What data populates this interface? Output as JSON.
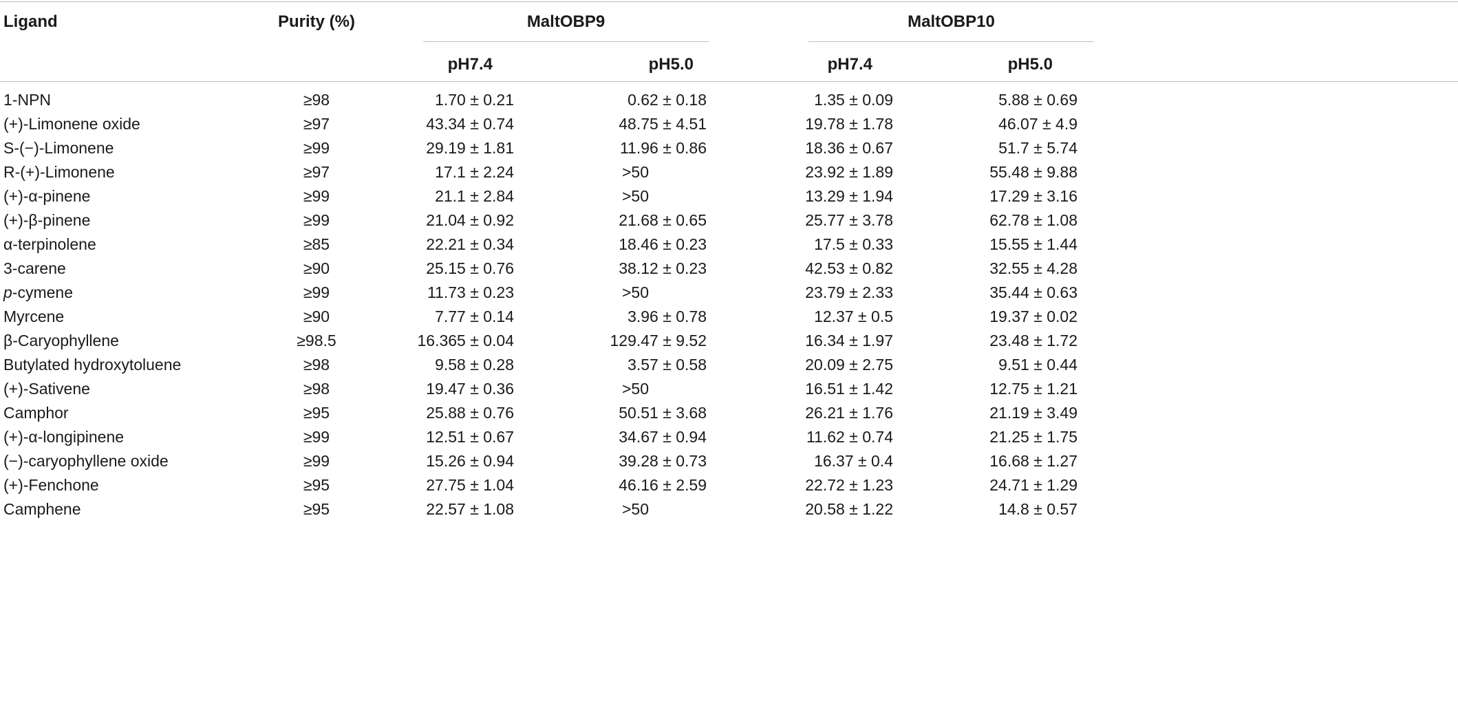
{
  "table": {
    "headers": {
      "ligand": "Ligand",
      "purity": "Purity (%)",
      "group1": "MaltOBP9",
      "group2": "MaltOBP10",
      "sub": [
        "pH7.4",
        "pH5.0",
        "pH7.4",
        "pH5.0"
      ]
    },
    "rows": [
      {
        "ligand": "1-NPN",
        "purity": "≥98",
        "v": [
          "1.70 ± 0.21",
          "0.62 ± 0.18",
          "1.35 ± 0.09",
          "5.88 ± 0.69"
        ]
      },
      {
        "ligand": "(+)-Limonene oxide",
        "purity": "≥97",
        "v": [
          "43.34 ± 0.74",
          "48.75 ± 4.51",
          "19.78 ± 1.78",
          "46.07 ± 4.9"
        ]
      },
      {
        "ligand": "S-(−)-Limonene",
        "purity": "≥99",
        "v": [
          "29.19 ± 1.81",
          "11.96 ± 0.86",
          "18.36 ± 0.67",
          "51.7 ± 5.74"
        ]
      },
      {
        "ligand": "R-(+)-Limonene",
        "purity": "≥97",
        "v": [
          "17.1 ± 2.24",
          ">50",
          "23.92 ± 1.89",
          "55.48 ± 9.88"
        ]
      },
      {
        "ligand": "(+)-α-pinene",
        "purity": "≥99",
        "v": [
          "21.1 ± 2.84",
          ">50",
          "13.29 ± 1.94",
          "17.29 ± 3.16"
        ]
      },
      {
        "ligand": "(+)-β-pinene",
        "purity": "≥99",
        "v": [
          "21.04 ± 0.92",
          "21.68 ± 0.65",
          "25.77 ± 3.78",
          "62.78 ± 1.08"
        ]
      },
      {
        "ligand": "α-terpinolene",
        "purity": "≥85",
        "v": [
          "22.21 ± 0.34",
          "18.46 ± 0.23",
          "17.5 ± 0.33",
          "15.55 ± 1.44"
        ]
      },
      {
        "ligand": "3-carene",
        "purity": "≥90",
        "v": [
          "25.15 ± 0.76",
          "38.12 ± 0.23",
          "42.53 ± 0.82",
          "32.55 ± 4.28"
        ]
      },
      {
        "ligand": "p-cymene",
        "purity": "≥99",
        "v": [
          "11.73 ± 0.23",
          ">50",
          "23.79 ± 2.33",
          "35.44 ± 0.63"
        ]
      },
      {
        "ligand": "Myrcene",
        "purity": "≥90",
        "v": [
          "7.77 ± 0.14",
          "3.96 ± 0.78",
          "12.37 ± 0.5",
          "19.37 ± 0.02"
        ]
      },
      {
        "ligand": "β-Caryophyllene",
        "purity": "≥98.5",
        "v": [
          "16.365 ± 0.04",
          "129.47 ± 9.52",
          "16.34 ± 1.97",
          "23.48 ± 1.72"
        ]
      },
      {
        "ligand": "Butylated hydroxytoluene",
        "purity": "≥98",
        "v": [
          "9.58 ± 0.28",
          "3.57 ± 0.58",
          "20.09 ± 2.75",
          "9.51 ± 0.44"
        ]
      },
      {
        "ligand": "(+)-Sativene",
        "purity": "≥98",
        "v": [
          "19.47 ± 0.36",
          ">50",
          "16.51 ± 1.42",
          "12.75 ± 1.21"
        ]
      },
      {
        "ligand": "Camphor",
        "purity": "≥95",
        "v": [
          "25.88 ± 0.76",
          "50.51 ± 3.68",
          "26.21 ± 1.76",
          "21.19 ± 3.49"
        ]
      },
      {
        "ligand": "(+)-α-longipinene",
        "purity": "≥99",
        "v": [
          "12.51 ± 0.67",
          "34.67 ± 0.94",
          "11.62 ± 0.74",
          "21.25 ± 1.75"
        ]
      },
      {
        "ligand": "(−)-caryophyllene oxide",
        "purity": "≥99",
        "v": [
          "15.26 ± 0.94",
          "39.28 ± 0.73",
          "16.37 ± 0.4",
          "16.68 ± 1.27"
        ]
      },
      {
        "ligand": "(+)-Fenchone",
        "purity": "≥95",
        "v": [
          "27.75 ± 1.04",
          "46.16 ± 2.59",
          "22.72 ± 1.23",
          "24.71 ± 1.29"
        ]
      },
      {
        "ligand": "Camphene",
        "purity": "≥95",
        "v": [
          "22.57 ± 1.08",
          ">50",
          "20.58 ± 1.22",
          "14.8 ± 0.57"
        ]
      }
    ]
  }
}
